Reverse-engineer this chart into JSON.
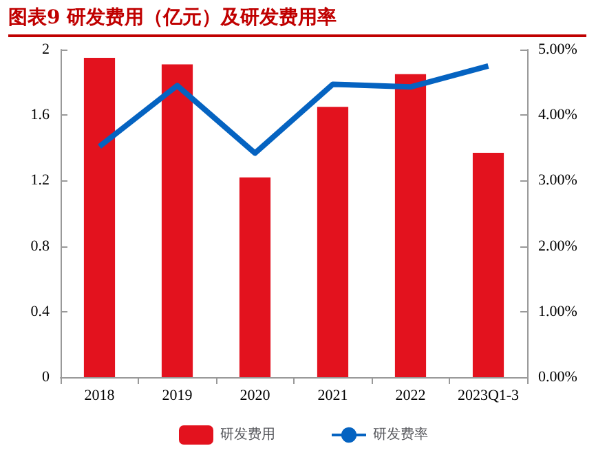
{
  "chart_data": {
    "type": "bar",
    "title": "图表9 研发费用（亿元）及研发费用率",
    "categories": [
      "2018",
      "2019",
      "2020",
      "2021",
      "2022",
      "2023Q1-3"
    ],
    "series": [
      {
        "name": "研发费用",
        "color": "#e3121e",
        "values": [
          1.95,
          1.91,
          1.22,
          1.65,
          1.85,
          1.37
        ]
      },
      {
        "name": "研发费率",
        "type": "line",
        "axis": "y2",
        "color": "#0563c1",
        "values": [
          3.52,
          4.45,
          3.42,
          4.47,
          4.43,
          4.75
        ]
      }
    ],
    "ylim": [
      0,
      2
    ],
    "yticks": [
      0,
      0.4,
      0.8,
      1.2,
      1.6,
      2
    ],
    "y2lim": [
      0,
      5
    ],
    "y2ticks": [
      {
        "value": 0,
        "label": "0.00%"
      },
      {
        "value": 1,
        "label": "1.00%"
      },
      {
        "value": 2,
        "label": "2.00%"
      },
      {
        "value": 3,
        "label": "3.00%"
      },
      {
        "value": 4,
        "label": "4.00%"
      },
      {
        "value": 5,
        "label": "5.00%"
      }
    ],
    "legend": "bottom",
    "marker": "none"
  }
}
